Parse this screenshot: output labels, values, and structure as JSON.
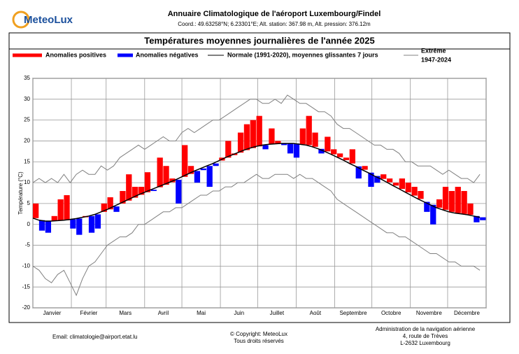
{
  "header": {
    "logo": "MeteoLux",
    "title": "Annuaire Climatologique de l'aéroport Luxembourg/Findel",
    "coords": "Coord.: 49.63258°N; 6.23301°E; Alt. station: 367.98 m, Alt. pression: 376.12m"
  },
  "footer": {
    "email": "Email: climatologie@airport.etat.lu",
    "copyright": [
      "© Copyright: MeteoLux",
      "Tous droits réservés"
    ],
    "address": [
      "Administration de la navigation aérienne",
      "4, route de Trèves",
      "L-2632 Luxembourg"
    ]
  },
  "chart_data": {
    "type": "bar",
    "title": "Températures moyennes journalières de l'année 2025",
    "y_label": "Température (°C)",
    "positive": {
      "name": "Anomalies positives",
      "color": "#ff0000"
    },
    "negative": {
      "name": "Anomalies négatives",
      "color": "#0000ff"
    },
    "x": [
      1,
      6,
      11,
      16,
      21,
      26,
      31,
      36,
      41,
      46,
      51,
      56,
      61,
      66,
      71,
      76,
      81,
      86,
      91,
      96,
      101,
      106,
      111,
      116,
      121,
      126,
      131,
      136,
      141,
      146,
      151,
      156,
      161,
      166,
      171,
      176,
      181,
      186,
      191,
      196,
      201,
      206,
      211,
      216,
      221,
      226,
      231,
      236,
      241,
      246,
      251,
      256,
      261,
      266,
      271,
      276,
      281,
      286,
      291,
      296,
      301,
      306,
      311,
      316,
      321,
      326,
      331,
      336,
      341,
      346,
      351,
      356,
      361
    ],
    "values": [
      5,
      -1.5,
      -2,
      2,
      6,
      7,
      -1,
      -2.5,
      2,
      -2,
      -1,
      5,
      6.5,
      3,
      8,
      12,
      9,
      9,
      12.5,
      8,
      16,
      14,
      11,
      5,
      19,
      14,
      10,
      13,
      9,
      14,
      16,
      20,
      17,
      22,
      24,
      25,
      26,
      18,
      23,
      20,
      19,
      17,
      16,
      23,
      26,
      22,
      17,
      21,
      18,
      17,
      16,
      18,
      11,
      14,
      9,
      10,
      12,
      11,
      10,
      11,
      10,
      9,
      8,
      3,
      0,
      6,
      9,
      8,
      9,
      8,
      5,
      0.5,
      1
    ],
    "normal": {
      "name": "Normale (1991-2020), moyennes glissantes 7 jours",
      "color": "#000000",
      "values": [
        1.5,
        1.0,
        0.8,
        0.8,
        0.9,
        1.0,
        1.2,
        1.4,
        1.7,
        2.0,
        2.4,
        3.0,
        3.6,
        4.3,
        5.0,
        5.7,
        6.4,
        7.1,
        7.7,
        8.3,
        8.9,
        9.5,
        10.1,
        10.7,
        11.4,
        12.1,
        12.8,
        13.4,
        14.0,
        14.6,
        15.3,
        16.0,
        16.6,
        17.2,
        17.8,
        18.3,
        18.7,
        19.0,
        19.2,
        19.3,
        19.4,
        19.4,
        19.4,
        19.2,
        19.0,
        18.6,
        18.1,
        17.5,
        16.8,
        16.1,
        15.4,
        14.6,
        13.9,
        13.1,
        12.4,
        11.6,
        10.9,
        10.1,
        9.3,
        8.5,
        7.7,
        6.9,
        6.1,
        5.4,
        4.7,
        4.0,
        3.5,
        3.0,
        2.7,
        2.5,
        2.3,
        2.0,
        1.7
      ]
    },
    "extreme": {
      "name": "Extrême",
      "period": "1947-2024",
      "color": "#808080",
      "max": [
        10,
        11,
        10,
        11,
        10,
        12,
        10,
        12,
        13,
        12,
        12,
        14,
        13,
        14,
        16,
        17,
        18,
        19,
        18,
        19,
        20,
        21,
        20,
        20,
        22,
        23,
        22,
        23,
        24,
        25,
        25,
        26,
        27,
        28,
        29,
        30,
        30,
        29,
        29,
        30,
        29,
        31,
        30,
        29,
        29,
        28,
        27,
        27,
        26,
        24,
        23,
        23,
        22,
        21,
        20,
        19,
        19,
        18,
        18,
        17,
        15,
        15,
        14,
        14,
        14,
        13,
        12,
        13,
        12,
        11,
        11,
        10,
        12
      ],
      "min": [
        -10,
        -11,
        -13,
        -14,
        -12,
        -11,
        -14,
        -17,
        -13,
        -10,
        -9,
        -7,
        -5,
        -4,
        -3,
        -3,
        -2,
        0,
        0,
        1,
        2,
        3,
        3,
        4,
        4,
        5,
        6,
        7,
        7,
        8,
        8,
        9,
        9,
        10,
        10,
        11,
        12,
        11,
        11,
        12,
        12,
        12,
        11,
        12,
        11,
        11,
        10,
        9,
        8,
        6,
        5,
        4,
        3,
        2,
        1,
        0,
        -1,
        -2,
        -2,
        -3,
        -3,
        -4,
        -5,
        -6,
        -7,
        -7,
        -8,
        -9,
        -9,
        -10,
        -10,
        -10,
        -11
      ]
    },
    "months": [
      "Janvier",
      "Février",
      "Mars",
      "Avril",
      "Mai",
      "Juin",
      "Juillet",
      "Août",
      "Septembre",
      "Octobre",
      "Novembre",
      "Décembre"
    ],
    "xlim": [
      1,
      366
    ],
    "xticks": [
      1,
      32,
      60,
      91,
      121,
      152,
      182,
      213,
      244,
      274,
      305,
      335,
      366
    ],
    "ylim": [
      -20,
      35
    ],
    "yticks": [
      -20,
      -15,
      -10,
      -5,
      0,
      5,
      10,
      15,
      20,
      25,
      30,
      35
    ],
    "grid": true
  }
}
